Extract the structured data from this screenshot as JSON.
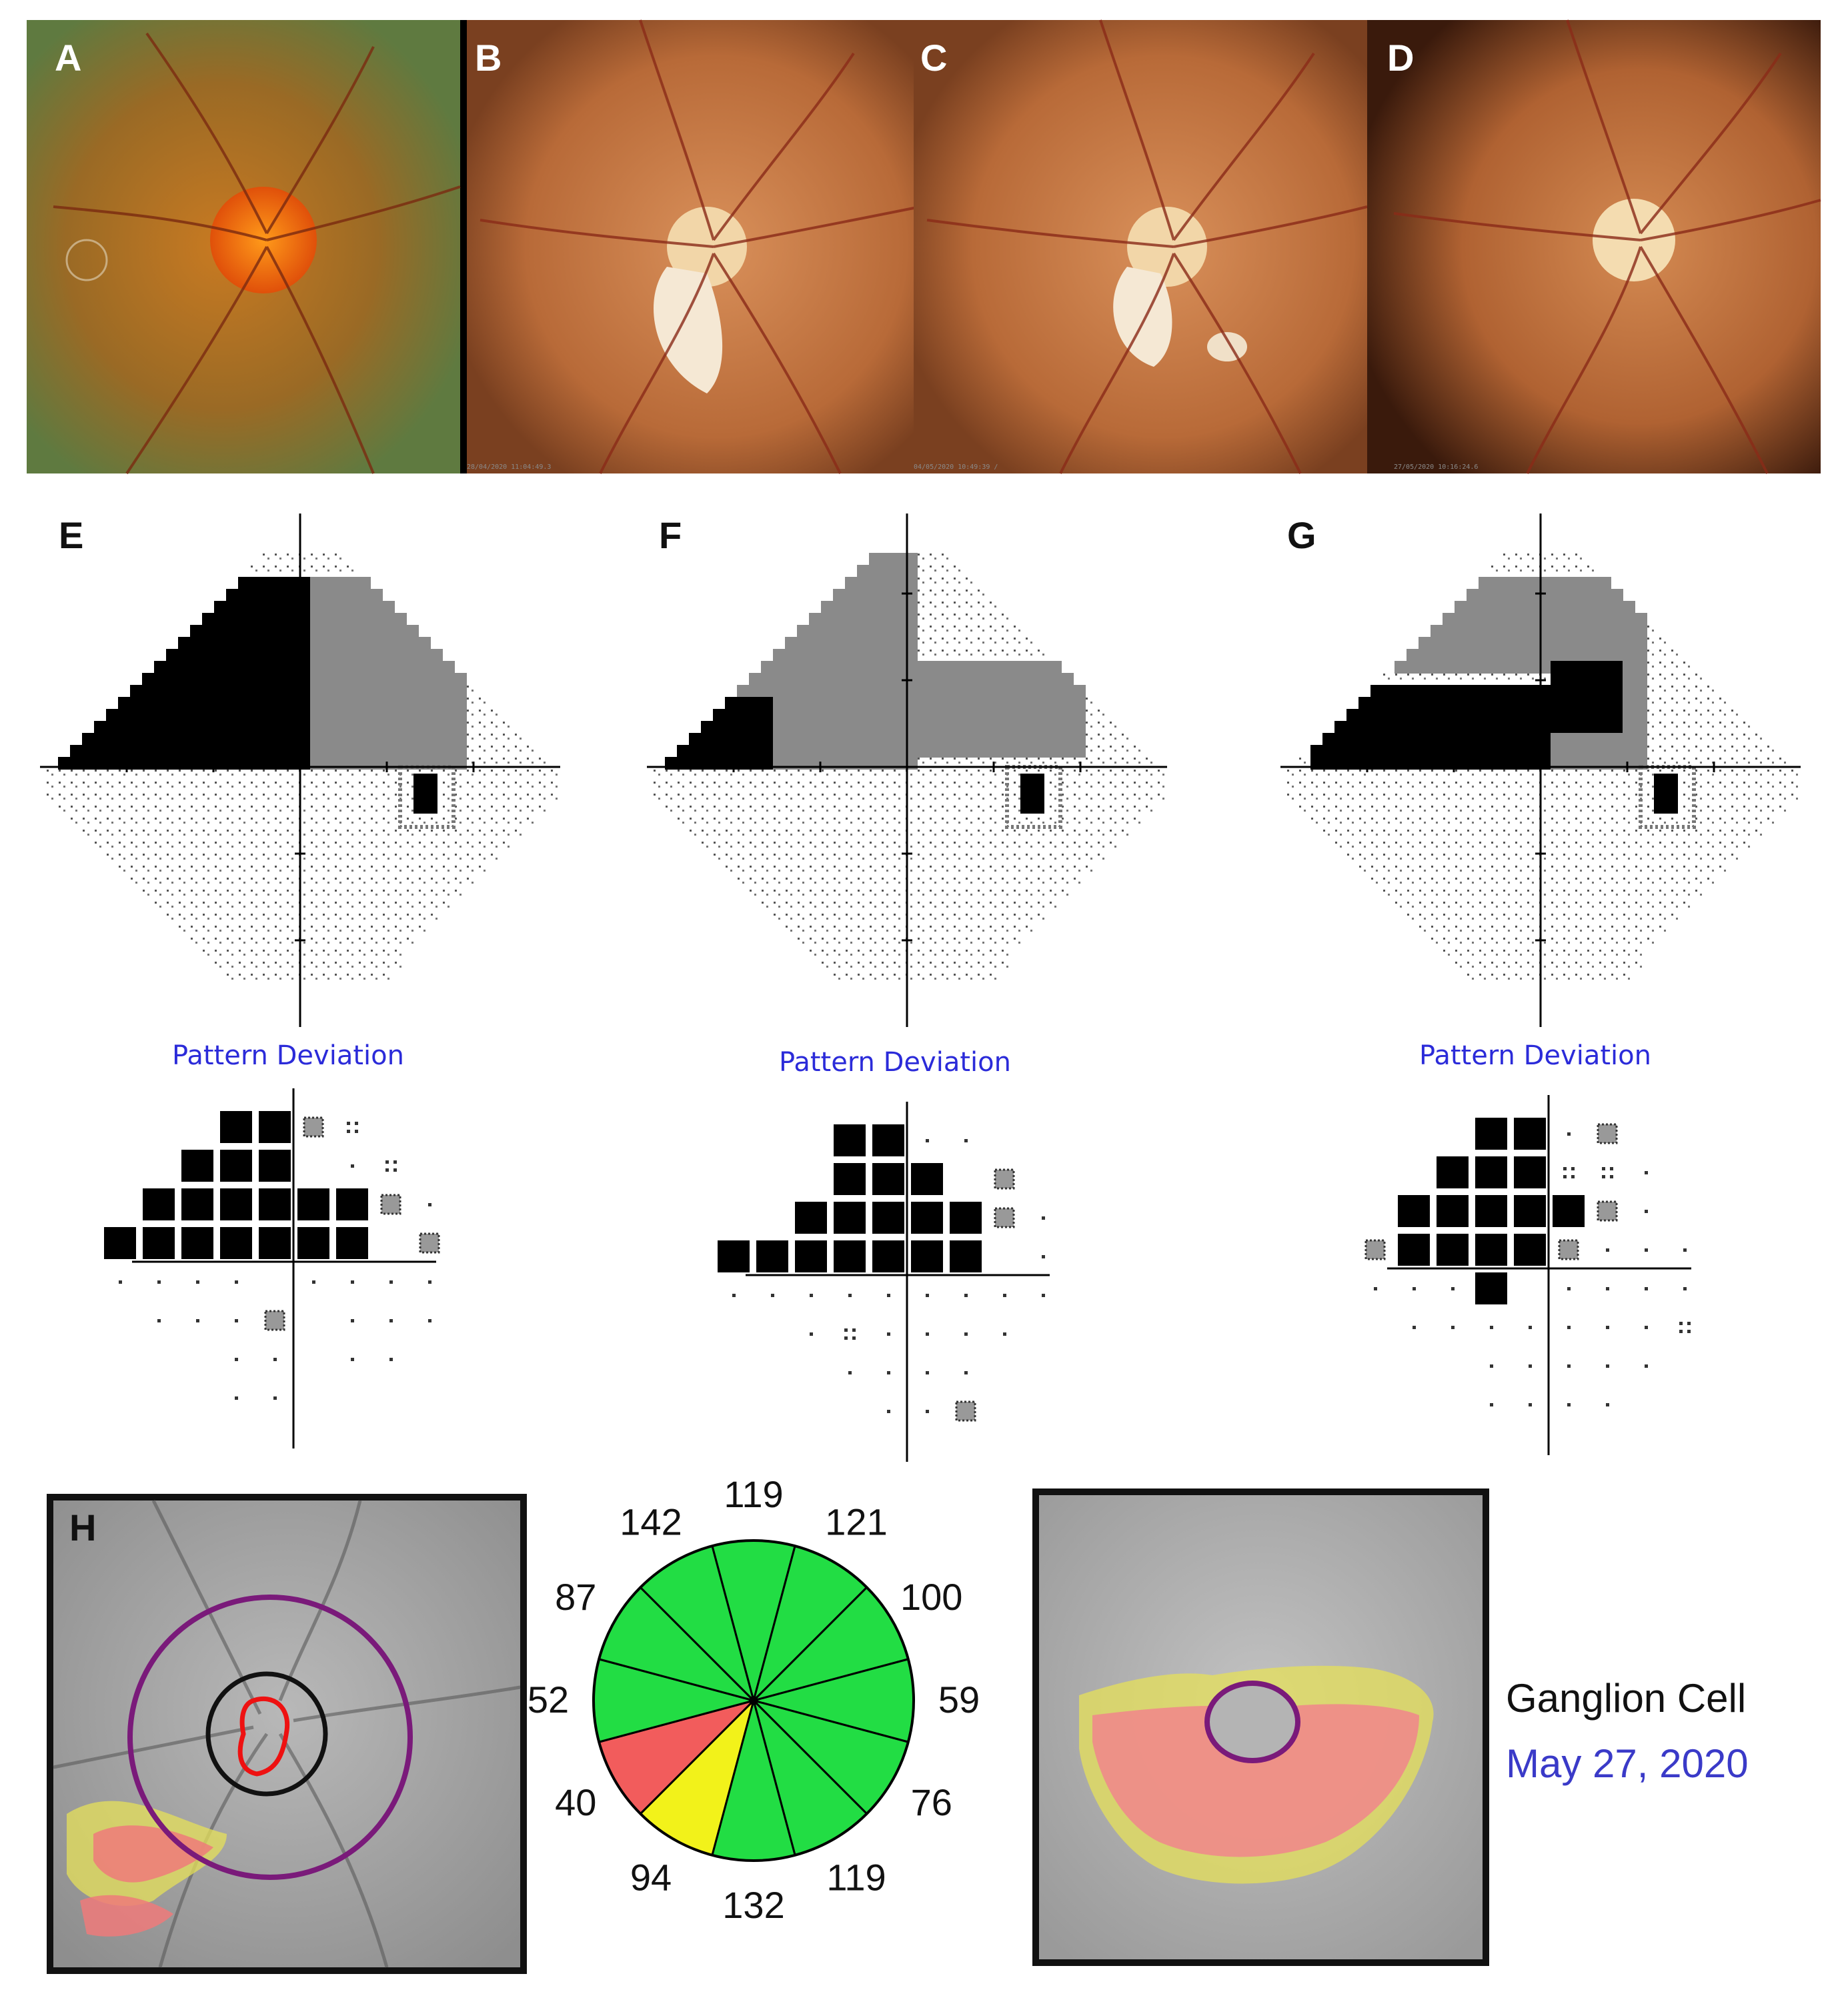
{
  "panels": {
    "a": "A",
    "b": "B",
    "c": "C",
    "d": "D",
    "e": "E",
    "f": "F",
    "g": "G",
    "h": "H"
  },
  "fundus_timestamps": {
    "b": "28/04/2020 11:04:49.3",
    "c": "04/05/2020 10:49:39 /",
    "d": "27/05/2020 10:16:24.6"
  },
  "pattern_deviation_label": "Pattern Deviation",
  "rnfl_sectors": {
    "labels": [
      "119",
      "121",
      "100",
      "59",
      "76",
      "119",
      "132",
      "94",
      "40",
      "52",
      "87",
      "142"
    ],
    "colors": {
      "normal": "#22dd44",
      "borderline": "#f2f21a",
      "abnormal": "#f25c5c"
    },
    "status": [
      "normal",
      "normal",
      "normal",
      "normal",
      "normal",
      "normal",
      "normal",
      "borderline",
      "abnormal",
      "normal",
      "normal",
      "normal"
    ]
  },
  "ganglion_cell": {
    "title": "Ganglion Cell",
    "date": "May 27, 2020"
  },
  "ring_color": "#7a1a7a",
  "disc_margin_color": "#ee1111"
}
